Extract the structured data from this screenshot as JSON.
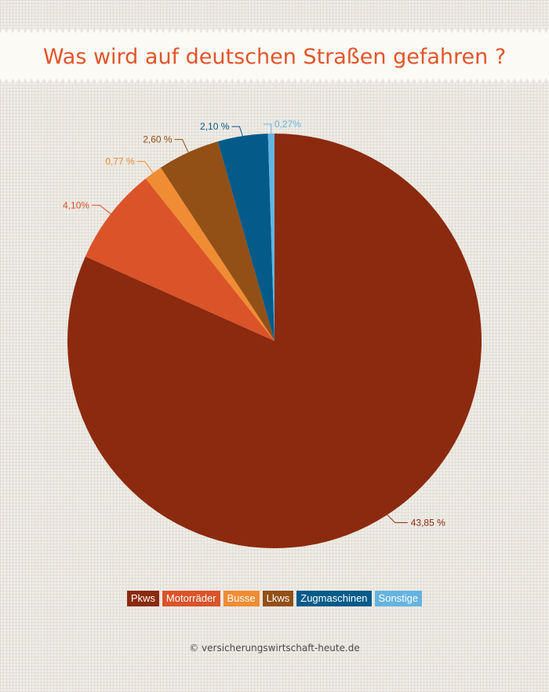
{
  "title": "Was wird auf deutschen Straßen gefahren ?",
  "footer": "© versicherungswirtschaft-heute.de",
  "chart_data": {
    "type": "pie",
    "title": "Was wird auf deutschen Straßen gefahren ?",
    "categories": [
      "Pkws",
      "Motorräder",
      "Busse",
      "Lkws",
      "Zugmaschinen",
      "Sonstige"
    ],
    "values": [
      43.85,
      4.1,
      0.77,
      2.6,
      2.1,
      0.27
    ],
    "labels": [
      "43,85 %",
      "4,10%",
      "0,77 %",
      "2,60 %",
      "2,10 %",
      "0,27%"
    ],
    "colors": [
      "#8b2a0e",
      "#db5329",
      "#f08c33",
      "#935016",
      "#045b89",
      "#63b4e0"
    ],
    "legend": "bottom"
  }
}
